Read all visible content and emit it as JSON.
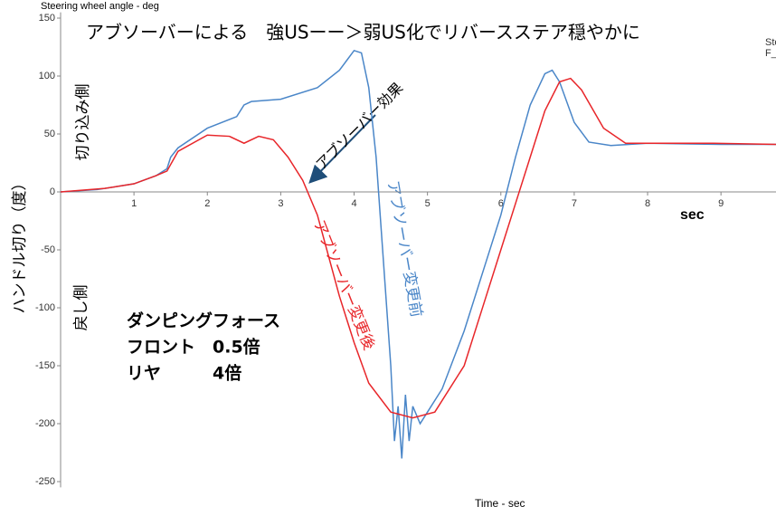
{
  "chart_data": {
    "type": "line",
    "title": "アブソーバーによる　強USーー＞弱US化でリバースステア穏やかに",
    "y_label": "Steering wheel angle - deg",
    "x_label": "Time - sec",
    "x_unit": "sec",
    "legend_fragments": [
      "Ste",
      "F_"
    ],
    "annotations": {
      "side_in": "切り込み側",
      "axis_title": "ハンドル切り（度）",
      "side_back": "戻し側",
      "damping_title": "ダンピングフォース",
      "front": "フロント　0.5倍",
      "rear": "リヤ　　　4倍",
      "effect": "アブソーバー効果",
      "after": "アブソーバー変更後",
      "before": "アブソーバー変更前"
    },
    "xlim": [
      0,
      9.75
    ],
    "xticks": [
      1,
      2,
      3,
      4,
      5,
      6,
      7,
      8,
      9
    ],
    "ylim": [
      -255,
      155
    ],
    "yticks": [
      150,
      100,
      50,
      0,
      -50,
      -100,
      -150,
      -200,
      -250
    ],
    "series": [
      {
        "name": "アブソーバー変更前",
        "color": "#4a86c8",
        "x": [
          0,
          0.5,
          1.0,
          1.3,
          1.45,
          1.5,
          1.6,
          2.0,
          2.4,
          2.5,
          2.6,
          3.0,
          3.5,
          3.8,
          4.0,
          4.1,
          4.2,
          4.3,
          4.4,
          4.5,
          4.55,
          4.6,
          4.65,
          4.7,
          4.75,
          4.8,
          4.9,
          5.0,
          5.2,
          5.5,
          5.8,
          6.0,
          6.2,
          6.4,
          6.6,
          6.7,
          6.8,
          7.0,
          7.2,
          7.5,
          8.0,
          9.0,
          9.75
        ],
        "values": [
          0,
          2,
          7,
          14,
          20,
          30,
          38,
          55,
          65,
          75,
          78,
          80,
          90,
          105,
          122,
          120,
          90,
          30,
          -60,
          -150,
          -215,
          -185,
          -230,
          -175,
          -215,
          -185,
          -200,
          -190,
          -170,
          -120,
          -60,
          -20,
          30,
          75,
          102,
          105,
          95,
          60,
          43,
          40,
          42,
          41,
          41
        ]
      },
      {
        "name": "アブソーバー変更後",
        "color": "#e8262a",
        "x": [
          0,
          0.6,
          1.0,
          1.3,
          1.45,
          1.6,
          2.0,
          2.3,
          2.5,
          2.7,
          2.9,
          3.1,
          3.3,
          3.5,
          3.8,
          4.0,
          4.2,
          4.5,
          4.8,
          5.1,
          5.5,
          5.8,
          6.0,
          6.2,
          6.4,
          6.6,
          6.8,
          6.95,
          7.1,
          7.4,
          7.7,
          8.0,
          8.3,
          8.9,
          9.75
        ],
        "values": [
          0,
          3,
          7,
          14,
          18,
          35,
          49,
          48,
          42,
          48,
          45,
          30,
          10,
          -20,
          -90,
          -130,
          -165,
          -190,
          -195,
          -190,
          -150,
          -90,
          -50,
          -10,
          30,
          70,
          95,
          98,
          88,
          55,
          42,
          42,
          42,
          42,
          41
        ]
      }
    ]
  }
}
